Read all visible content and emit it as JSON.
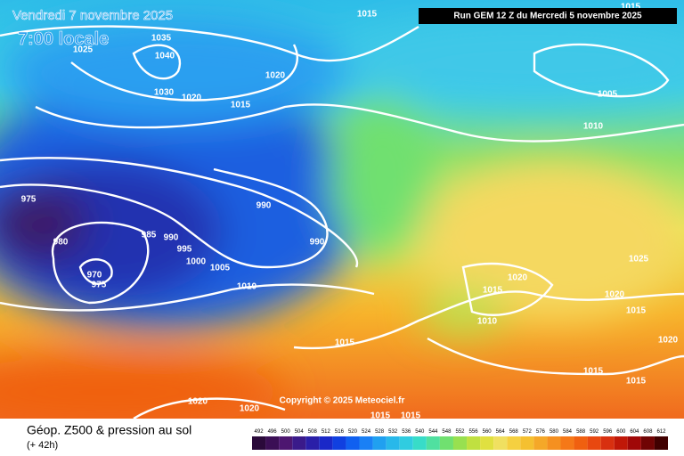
{
  "header": {
    "title": "Vendredi 7 novembre 2025",
    "subtitle": "7:00 locale",
    "run": "Run GEM 12 Z du Mercredi 5 novembre 2025"
  },
  "copyright": "Copyright © 2025 Meteociel.fr",
  "isobar_labels": [
    "1015",
    "1035",
    "1025",
    "1040",
    "1020",
    "1030",
    "1020",
    "1015",
    "1015",
    "1005",
    "1010",
    "975",
    "990",
    "980",
    "985",
    "990",
    "990",
    "995",
    "1000",
    "1005",
    "970",
    "975",
    "1010",
    "1025",
    "1020",
    "1015",
    "1020",
    "1015",
    "1010",
    "1015",
    "1020",
    "1015",
    "1015",
    "1020",
    "1020",
    "1015",
    "1015"
  ],
  "footer": {
    "title": "Géop. Z500 & pression au sol",
    "lead": "(+ 42h)"
  },
  "colorbar": {
    "values": [
      492,
      496,
      500,
      504,
      508,
      512,
      516,
      520,
      524,
      528,
      532,
      536,
      540,
      544,
      548,
      552,
      556,
      560,
      564,
      568,
      572,
      576,
      580,
      584,
      588,
      592,
      596,
      600,
      604,
      608,
      612
    ],
    "colors": [
      "#2a0a3a",
      "#3b0f55",
      "#4d1670",
      "#3a1a8a",
      "#2a1fa8",
      "#1a28c8",
      "#1040e0",
      "#1060f0",
      "#1a80f5",
      "#20a0f0",
      "#28b8ea",
      "#30cce0",
      "#38dcc8",
      "#50e0a0",
      "#70e070",
      "#98e050",
      "#c0e040",
      "#e0e040",
      "#f0e060",
      "#f5d040",
      "#f5c030",
      "#f5a828",
      "#f59020",
      "#f57818",
      "#f06010",
      "#e84810",
      "#d83010",
      "#c01808",
      "#a00808",
      "#700404",
      "#400000"
    ]
  }
}
